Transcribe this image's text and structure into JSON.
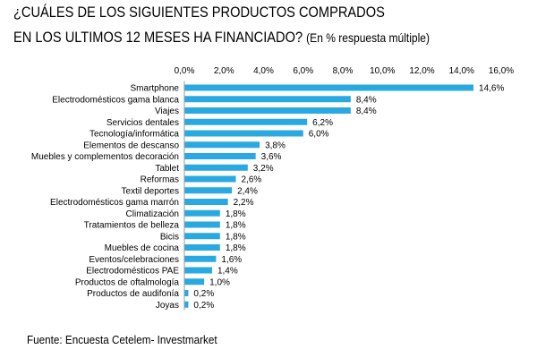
{
  "header": {
    "title_line1": "¿CUÁLES DE LOS SIGUIENTES PRODUCTOS COMPRADOS",
    "title_line2": "EN LOS ULTIMOS 12 MESES HA FINANCIADO?",
    "subtitle": "(En % respuesta múltiple)"
  },
  "footer": {
    "source": "Fuente: Encuesta Cetelem- Investmarket"
  },
  "colors": {
    "bar": "#2aa9e0",
    "axis": "#999999",
    "grid": "#d9d9d9"
  },
  "chart_data": {
    "type": "bar",
    "orientation": "horizontal",
    "title": "¿CUÁLES DE LOS SIGUIENTES PRODUCTOS COMPRADOS EN LOS ULTIMOS 12 MESES HA FINANCIADO?",
    "xlim": [
      0,
      16
    ],
    "x_ticks": [
      "0,0%",
      "2,0%",
      "4,0%",
      "6,0%",
      "8,0%",
      "10,0%",
      "12,0%",
      "14,0%",
      "16,0%"
    ],
    "tick_position": "top",
    "categories": [
      "Smartphone",
      "Electrodomésticos gama blanca",
      "Viajes",
      "Servicios dentales",
      "Tecnología/informática",
      "Elementos de descanso",
      "Muebles y complementos decoración",
      "Tablet",
      "Reformas",
      "Textil deportes",
      "Electrodomésticos gama marrón",
      "Climatización",
      "Tratamientos de belleza",
      "Bicis",
      "Muebles de cocina",
      "Eventos/celebraciones",
      "Electrodomésticos PAE",
      "Productos de oftalmología",
      "Productos de audifonía",
      "Joyas"
    ],
    "values": [
      14.6,
      8.4,
      8.4,
      6.2,
      6.0,
      3.8,
      3.6,
      3.2,
      2.6,
      2.4,
      2.2,
      1.8,
      1.8,
      1.8,
      1.8,
      1.6,
      1.4,
      1.0,
      0.2,
      0.2
    ],
    "value_labels": [
      "14,6%",
      "8,4%",
      "8,4%",
      "6,2%",
      "6,0%",
      "3,8%",
      "3,6%",
      "3,2%",
      "2,6%",
      "2,4%",
      "2,2%",
      "1,8%",
      "1,8%",
      "1,8%",
      "1,8%",
      "1,6%",
      "1,4%",
      "1,0%",
      "0,2%",
      "0,2%"
    ]
  }
}
